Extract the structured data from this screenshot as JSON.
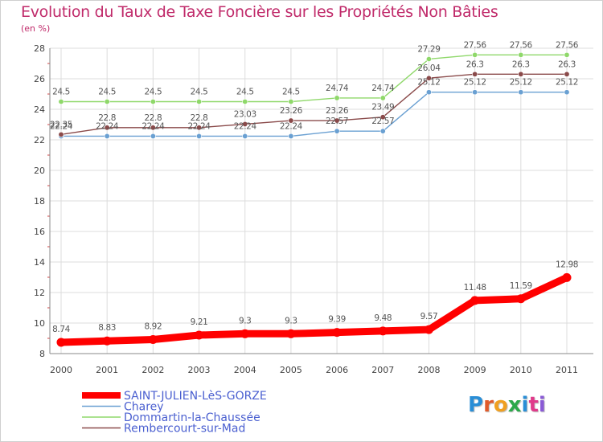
{
  "title": "Evolution du Taux de Taxe Foncière sur les Propriétés Non Bâties",
  "unit_label": "(en %)",
  "logo_text": "Proxiti",
  "logo_colors": [
    "#2a8ed6",
    "#e05a2a",
    "#f0a020",
    "#2aa84a",
    "#2a8ed6",
    "#e03a8a",
    "#8a5ad6"
  ],
  "chart_data": {
    "type": "line",
    "title": "Evolution du Taux de Taxe Foncière sur les Propriétés Non Bâties",
    "ylabel": "(en %)",
    "xlabel": "",
    "x": [
      "2000",
      "2001",
      "2002",
      "2003",
      "2004",
      "2005",
      "2006",
      "2007",
      "2008",
      "2009",
      "2010",
      "2011"
    ],
    "ylim": [
      8,
      28
    ],
    "yticks": [
      8,
      10,
      12,
      14,
      16,
      18,
      20,
      22,
      24,
      26,
      28
    ],
    "grid": true,
    "legend": "bottom-left",
    "series": [
      {
        "name": "SAINT-JULIEN-LèS-GORZE",
        "color": "#ff0000",
        "values": [
          8.74,
          8.83,
          8.92,
          9.21,
          9.3,
          9.3,
          9.39,
          9.48,
          9.57,
          11.48,
          11.59,
          12.98
        ]
      },
      {
        "name": "Charey",
        "color": "#6aa0d2",
        "values": [
          22.24,
          22.24,
          22.24,
          22.24,
          22.24,
          22.24,
          22.57,
          22.57,
          25.12,
          25.12,
          25.12,
          25.12
        ]
      },
      {
        "name": "Dommartin-la-Chaussée",
        "color": "#8fd86a",
        "values": [
          24.5,
          24.5,
          24.5,
          24.5,
          24.5,
          24.5,
          24.74,
          24.74,
          27.29,
          27.56,
          27.56,
          27.56
        ]
      },
      {
        "name": "Rembercourt-sur-Mad",
        "color": "#8a4a4a",
        "values": [
          22.35,
          22.8,
          22.8,
          22.8,
          23.03,
          23.26,
          23.26,
          23.49,
          26.04,
          26.3,
          26.3,
          26.3
        ]
      }
    ]
  }
}
